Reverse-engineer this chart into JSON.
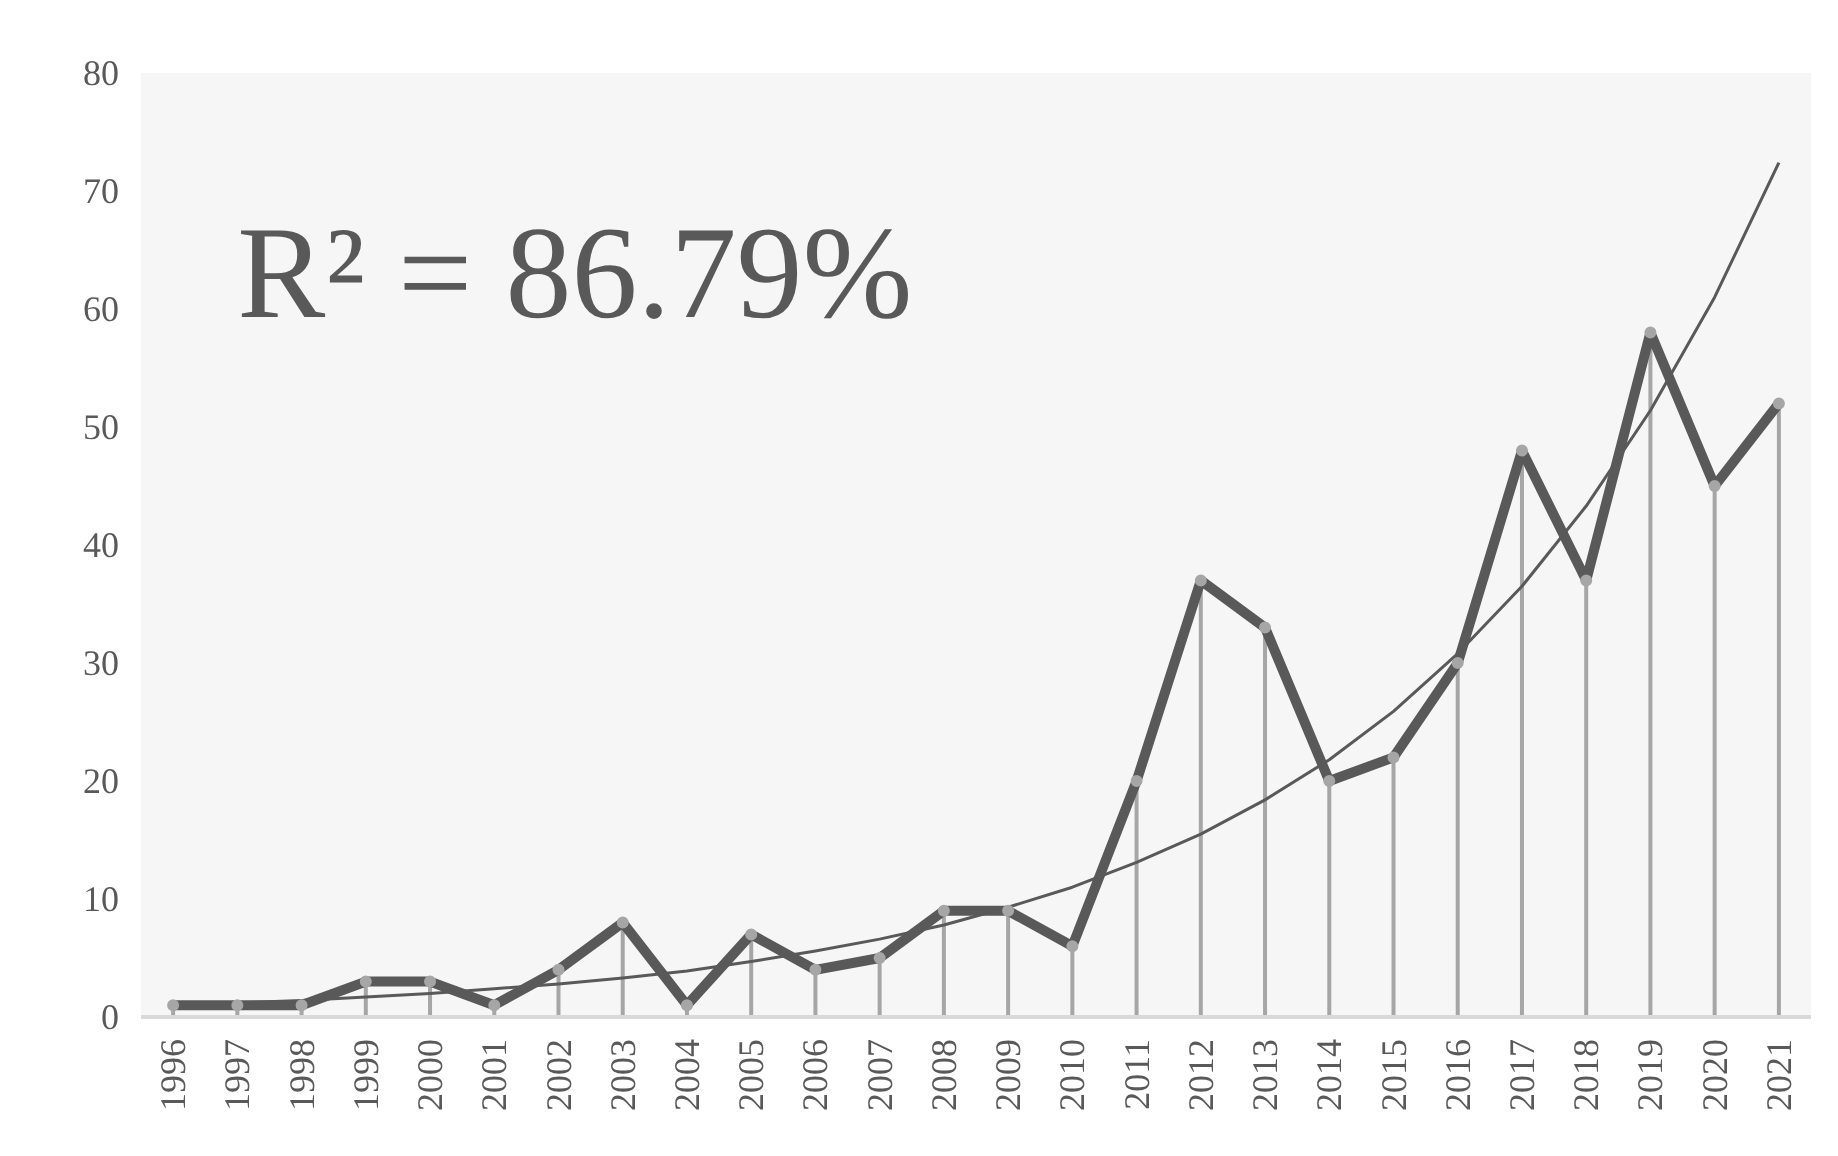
{
  "chart_data": {
    "type": "line",
    "categories": [
      "1996",
      "1997",
      "1998",
      "1999",
      "2000",
      "2001",
      "2002",
      "2003",
      "2004",
      "2005",
      "2006",
      "2007",
      "2008",
      "2009",
      "2010",
      "2011",
      "2012",
      "2013",
      "2014",
      "2015",
      "2016",
      "2017",
      "2018",
      "2019",
      "2020",
      "2021"
    ],
    "series": [
      {
        "type": "lollipop",
        "color": "#a6a6a6",
        "values": [
          1,
          1,
          1,
          3,
          3,
          1,
          4,
          8,
          1,
          7,
          4,
          5,
          9,
          9,
          6,
          20,
          37,
          33,
          20,
          22,
          30,
          48,
          37,
          58,
          45,
          52
        ]
      },
      {
        "color": "#595959",
        "values": [
          1,
          1,
          1,
          3,
          3,
          1,
          4,
          8,
          1,
          7,
          4,
          5,
          9,
          9,
          6,
          20,
          37,
          33,
          20,
          22,
          30,
          48,
          37,
          58,
          45,
          52
        ]
      },
      {
        "type": "line",
        "color": "#595959",
        "values": [
          1.0,
          1.2,
          1.4,
          1.7,
          2.0,
          2.4,
          2.8,
          3.3,
          3.9,
          4.7,
          5.6,
          6.6,
          7.8,
          9.3,
          11.0,
          13.1,
          15.5,
          18.4,
          21.8,
          25.9,
          30.8,
          36.5,
          43.3,
          51.4,
          61.0,
          72.4
        ]
      }
    ],
    "ylim": [
      0,
      80
    ],
    "yticks": [
      0,
      10,
      20,
      30,
      40,
      50,
      60,
      70,
      80
    ],
    "line_style": "solid",
    "annotations": [
      "R² = 86.79%"
    ]
  }
}
